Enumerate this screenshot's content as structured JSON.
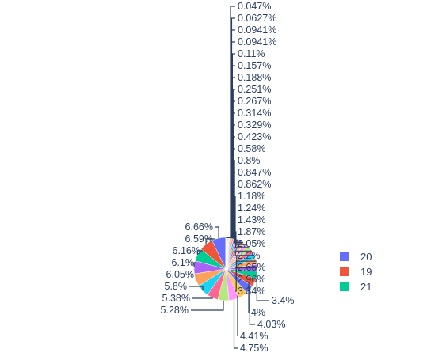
{
  "chart_data": {
    "type": "pie",
    "labels_format": "percent",
    "slices": [
      {
        "category": "20",
        "percent_label": "6.66%",
        "value": 6.66,
        "color": "#636efa"
      },
      {
        "category": "19",
        "percent_label": "6.59%",
        "value": 6.59,
        "color": "#ef553b"
      },
      {
        "category": "21",
        "percent_label": "6.16%",
        "value": 6.16,
        "color": "#00cc96"
      },
      {
        "category": "",
        "percent_label": "6.1%",
        "value": 6.1,
        "color": "#ab63fa"
      },
      {
        "category": "",
        "percent_label": "6.05%",
        "value": 6.05,
        "color": "#ffa15a"
      },
      {
        "category": "",
        "percent_label": "5.8%",
        "value": 5.8,
        "color": "#19d3f3"
      },
      {
        "category": "",
        "percent_label": "5.38%",
        "value": 5.38,
        "color": "#ff6692"
      },
      {
        "category": "",
        "percent_label": "5.28%",
        "value": 5.28,
        "color": "#b6e880"
      },
      {
        "category": "",
        "percent_label": "4.75%",
        "value": 4.75,
        "color": "#ff97ff"
      },
      {
        "category": "",
        "percent_label": "4.41%",
        "value": 4.41,
        "color": "#fecb52"
      },
      {
        "category": "",
        "percent_label": "4.03%",
        "value": 4.03,
        "color": "#636efa"
      },
      {
        "category": "",
        "percent_label": "4%",
        "value": 4.0,
        "color": "#ef553b"
      },
      {
        "category": "",
        "percent_label": "3.4%",
        "value": 3.4,
        "color": "#00cc96"
      },
      {
        "category": "",
        "percent_label": "3.34%",
        "value": 3.34,
        "color": "#ab63fa"
      },
      {
        "category": "",
        "percent_label": "2.96%",
        "value": 2.96,
        "color": "#ffa15a"
      },
      {
        "category": "",
        "percent_label": "2.65%",
        "value": 2.65,
        "color": "#19d3f3"
      },
      {
        "category": "",
        "percent_label": "2.2%",
        "value": 2.2,
        "color": "#ff6692"
      },
      {
        "category": "",
        "percent_label": "2.05%",
        "value": 2.05,
        "color": "#b6e880"
      },
      {
        "category": "",
        "percent_label": "1.87%",
        "value": 1.87,
        "color": "#ff97ff"
      },
      {
        "category": "",
        "percent_label": "1.43%",
        "value": 1.43,
        "color": "#fecb52"
      },
      {
        "category": "",
        "percent_label": "1.24%",
        "value": 1.24,
        "color": "#636efa"
      },
      {
        "category": "",
        "percent_label": "1.18%",
        "value": 1.18,
        "color": "#ef553b"
      },
      {
        "category": "",
        "percent_label": "0.862%",
        "value": 0.862,
        "color": "#00cc96"
      },
      {
        "category": "",
        "percent_label": "0.847%",
        "value": 0.847,
        "color": "#ab63fa"
      },
      {
        "category": "",
        "percent_label": "0.8%",
        "value": 0.8,
        "color": "#ffa15a"
      },
      {
        "category": "",
        "percent_label": "0.58%",
        "value": 0.58,
        "color": "#19d3f3"
      },
      {
        "category": "",
        "percent_label": "0.423%",
        "value": 0.423,
        "color": "#ff6692"
      },
      {
        "category": "",
        "percent_label": "0.329%",
        "value": 0.329,
        "color": "#b6e880"
      },
      {
        "category": "",
        "percent_label": "0.314%",
        "value": 0.314,
        "color": "#ff97ff"
      },
      {
        "category": "",
        "percent_label": "0.267%",
        "value": 0.267,
        "color": "#fecb52"
      },
      {
        "category": "",
        "percent_label": "0.251%",
        "value": 0.251,
        "color": "#636efa"
      },
      {
        "category": "",
        "percent_label": "0.188%",
        "value": 0.188,
        "color": "#ef553b"
      },
      {
        "category": "",
        "percent_label": "0.157%",
        "value": 0.157,
        "color": "#00cc96"
      },
      {
        "category": "",
        "percent_label": "0.11%",
        "value": 0.11,
        "color": "#ab63fa"
      },
      {
        "category": "",
        "percent_label": "0.0941%",
        "value": 0.0941,
        "color": "#ffa15a"
      },
      {
        "category": "",
        "percent_label": "0.0941%",
        "value": 0.0941,
        "color": "#19d3f3"
      },
      {
        "category": "",
        "percent_label": "0.0627%",
        "value": 0.0627,
        "color": "#ff6692"
      },
      {
        "category": "",
        "percent_label": "0.047%",
        "value": 0.047,
        "color": "#b6e880"
      }
    ],
    "legend": {
      "placement": "right",
      "entries": [
        {
          "name": "20",
          "color": "#636efa"
        },
        {
          "name": "19",
          "color": "#ef553b"
        },
        {
          "name": "21",
          "color": "#00cc96"
        }
      ]
    },
    "title": "",
    "leader_line_color": "#2a3f5f",
    "label_text_color": "#2a3f5f"
  }
}
